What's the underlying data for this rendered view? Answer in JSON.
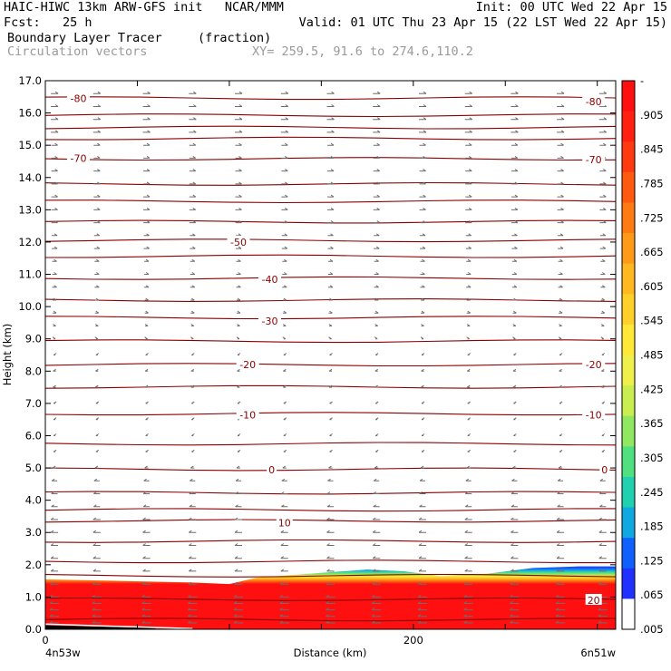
{
  "header": {
    "line1_left": "HAIC-HIWC 13km ARW-GFS init   NCAR/MMM",
    "line1_right": "Init: 00 UTC Wed 22 Apr 15",
    "line2_left": "Fcst:   25 h",
    "line2_right": "Valid: 01 UTC Thu 23 Apr 15 (22 LST Wed 22 Apr 15)",
    "line3_left": "Boundary Layer Tracer",
    "line3_mid": "(fraction)",
    "line4_left": "Circulation vectors",
    "line4_mid": "XY= 259.5, 91.6 to 274.6,110.2"
  },
  "chart_data": {
    "type": "heatmap",
    "title": "Boundary Layer Tracer",
    "units": "(fraction)",
    "xlabel": "Distance (km)",
    "ylabel": "Height (km)",
    "xlim": [
      0,
      310
    ],
    "ylim": [
      0,
      17
    ],
    "x_tick_labels": [
      "0",
      "200"
    ],
    "x_ticks": [
      0,
      200
    ],
    "x_end_labels": {
      "left": "4n53w",
      "right": "6n51w"
    },
    "y_ticks": [
      0.0,
      1.0,
      2.0,
      3.0,
      4.0,
      5.0,
      6.0,
      7.0,
      8.0,
      9.0,
      10.0,
      11.0,
      12.0,
      13.0,
      14.0,
      15.0,
      16.0,
      17.0
    ],
    "y_tick_labels": [
      "0.0",
      "1.0",
      "2.0",
      "3.0",
      "4.0",
      "5.0",
      "6.0",
      "7.0",
      "8.0",
      "9.0",
      "10.0",
      "11.0",
      "12.0",
      "13.0",
      "14.0",
      "15.0",
      "16.0",
      "17.0"
    ],
    "colorbar": {
      "labels": [
        "-",
        ".905",
        ".845",
        ".785",
        ".725",
        ".665",
        ".605",
        ".545",
        ".485",
        ".425",
        ".365",
        ".305",
        ".245",
        ".185",
        ".125",
        ".065",
        ".005"
      ],
      "colors": [
        "#ff1010",
        "#ff2010",
        "#ff3a10",
        "#ff5a10",
        "#ff7a10",
        "#ff9a18",
        "#ffb820",
        "#ffd02a",
        "#ffe838",
        "#f0f04a",
        "#c8ee50",
        "#90e860",
        "#50e080",
        "#20d0b0",
        "#10a8e0",
        "#1060ff",
        "#2030ff",
        "#ffffff"
      ]
    },
    "tracer_top_km": [
      {
        "x": 0,
        "y": 1.55
      },
      {
        "x": 40,
        "y": 1.5
      },
      {
        "x": 80,
        "y": 1.45
      },
      {
        "x": 100,
        "y": 1.4
      },
      {
        "x": 115,
        "y": 1.6
      },
      {
        "x": 150,
        "y": 1.75
      },
      {
        "x": 175,
        "y": 1.85
      },
      {
        "x": 195,
        "y": 1.8
      },
      {
        "x": 215,
        "y": 1.65
      },
      {
        "x": 240,
        "y": 1.72
      },
      {
        "x": 265,
        "y": 1.9
      },
      {
        "x": 290,
        "y": 1.95
      },
      {
        "x": 310,
        "y": 1.95
      }
    ],
    "contour_labels": [
      {
        "text": "-80",
        "x": 18,
        "y": 16.45
      },
      {
        "text": "-80",
        "x": 298,
        "y": 16.35
      },
      {
        "text": "-70",
        "x": 18,
        "y": 14.6
      },
      {
        "text": "-70",
        "x": 298,
        "y": 14.55
      },
      {
        "text": "-50",
        "x": 105,
        "y": 12.0
      },
      {
        "text": "-40",
        "x": 122,
        "y": 10.85
      },
      {
        "text": "-30",
        "x": 122,
        "y": 9.55
      },
      {
        "text": "-20",
        "x": 110,
        "y": 8.2
      },
      {
        "text": "-20",
        "x": 298,
        "y": 8.2
      },
      {
        "text": "-10",
        "x": 110,
        "y": 6.65
      },
      {
        "text": "-10",
        "x": 298,
        "y": 6.65
      },
      {
        "text": "0",
        "x": 123,
        "y": 4.95
      },
      {
        "text": "0",
        "x": 304,
        "y": 4.95
      },
      {
        "text": "10",
        "x": 130,
        "y": 3.3
      },
      {
        "text": "20",
        "x": 298,
        "y": 0.9
      }
    ],
    "contour_levels_km": [
      0.3,
      0.9,
      1.6,
      2.1,
      2.7,
      3.3,
      3.7,
      4.2,
      4.9,
      5.75,
      6.65,
      7.45,
      8.2,
      8.9,
      9.6,
      10.2,
      10.85,
      11.5,
      12.05,
      12.6,
      13.2,
      13.8,
      14.55,
      15.15,
      15.55,
      15.9,
      16.4
    ],
    "vector_rows": [
      {
        "y": 16.6,
        "dir": "right",
        "len": 8
      },
      {
        "y": 16.2,
        "dir": "right",
        "len": 8
      },
      {
        "y": 15.8,
        "dir": "right",
        "len": 8
      },
      {
        "y": 15.4,
        "dir": "right",
        "len": 8
      },
      {
        "y": 15.0,
        "dir": "right",
        "len": 7
      },
      {
        "y": 14.6,
        "dir": "right",
        "len": 7
      },
      {
        "y": 14.2,
        "dir": "right",
        "len": 7
      },
      {
        "y": 13.8,
        "dir": "right",
        "len": 7
      },
      {
        "y": 13.4,
        "dir": "right",
        "len": 7
      },
      {
        "y": 13.0,
        "dir": "right",
        "len": 7
      },
      {
        "y": 12.6,
        "dir": "right",
        "len": 7
      },
      {
        "y": 12.2,
        "dir": "right",
        "len": 6
      },
      {
        "y": 11.8,
        "dir": "right",
        "len": 6
      },
      {
        "y": 11.4,
        "dir": "right",
        "len": 5
      },
      {
        "y": 11.0,
        "dir": "right",
        "len": 5
      },
      {
        "y": 10.6,
        "dir": "right",
        "len": 5
      },
      {
        "y": 10.2,
        "dir": "right",
        "len": 4
      },
      {
        "y": 9.8,
        "dir": "right",
        "len": 4
      },
      {
        "y": 9.4,
        "dir": "right",
        "len": 3
      },
      {
        "y": 9.0,
        "dir": "right",
        "len": 2
      },
      {
        "y": 8.5,
        "dir": "left",
        "len": 2
      },
      {
        "y": 8.0,
        "dir": "left",
        "len": 3
      },
      {
        "y": 7.5,
        "dir": "left",
        "len": 3
      },
      {
        "y": 7.0,
        "dir": "left",
        "len": 2
      },
      {
        "y": 6.5,
        "dir": "left",
        "len": 2
      },
      {
        "y": 6.0,
        "dir": "left",
        "len": 2
      },
      {
        "y": 5.5,
        "dir": "left",
        "len": 2
      },
      {
        "y": 5.0,
        "dir": "left",
        "len": 4
      },
      {
        "y": 4.6,
        "dir": "left",
        "len": 6
      },
      {
        "y": 4.2,
        "dir": "left",
        "len": 7
      },
      {
        "y": 3.8,
        "dir": "left",
        "len": 7
      },
      {
        "y": 3.4,
        "dir": "left",
        "len": 8
      },
      {
        "y": 3.0,
        "dir": "left",
        "len": 8
      },
      {
        "y": 2.6,
        "dir": "left",
        "len": 8
      },
      {
        "y": 2.2,
        "dir": "left",
        "len": 8
      },
      {
        "y": 1.8,
        "dir": "left",
        "len": 8
      },
      {
        "y": 1.4,
        "dir": "left",
        "len": 9
      },
      {
        "y": 1.0,
        "dir": "left",
        "len": 10
      },
      {
        "y": 0.8,
        "dir": "left",
        "len": 10
      },
      {
        "y": 0.6,
        "dir": "left",
        "len": 10
      },
      {
        "y": 0.4,
        "dir": "left",
        "len": 10
      },
      {
        "y": 0.2,
        "dir": "left",
        "len": 10
      }
    ],
    "vector_columns_km": [
      5,
      28,
      55,
      80,
      105,
      130,
      155,
      180,
      205,
      230,
      255,
      280,
      303
    ],
    "grid": false,
    "legend": "right colorbar"
  }
}
